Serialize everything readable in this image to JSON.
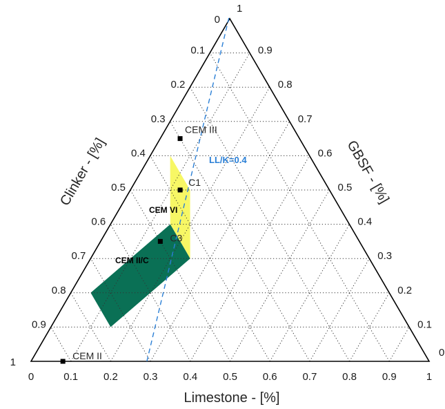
{
  "chart_data": {
    "type": "ternary",
    "axes": {
      "bottom": {
        "label": "Limestone - [%]",
        "ticks": [
          "0",
          "0.1",
          "0.2",
          "0.3",
          "0.4",
          "0.5",
          "0.6",
          "0.7",
          "0.8",
          "0.9",
          "1"
        ]
      },
      "left": {
        "label": "Clinker - [%]",
        "ticks": [
          "0",
          "0.1",
          "0.2",
          "0.3",
          "0.4",
          "0.5",
          "0.6",
          "0.7",
          "0.8",
          "0.9",
          "1"
        ]
      },
      "right": {
        "label": "GBSF - [%]",
        "ticks": [
          "0",
          "0.1",
          "0.2",
          "0.3",
          "0.4",
          "0.5",
          "0.6",
          "0.7",
          "0.8",
          "0.9",
          "1"
        ]
      }
    },
    "grid": true,
    "grid_step": 0.1,
    "regions": [
      {
        "label": "CEM VI",
        "color": "#f7f765",
        "vertices": [
          {
            "limestone": 0.05,
            "gbsf": 0.6
          },
          {
            "limestone": 0.15,
            "gbsf": 0.5
          },
          {
            "limestone": 0.25,
            "gbsf": 0.3
          },
          {
            "limestone": 0.15,
            "gbsf": 0.4
          }
        ]
      },
      {
        "label": "CEM II/C",
        "color": "#0a7055",
        "vertices": [
          {
            "limestone": 0.15,
            "gbsf": 0.4
          },
          {
            "limestone": 0.25,
            "gbsf": 0.3
          },
          {
            "limestone": 0.15,
            "gbsf": 0.1
          },
          {
            "limestone": 0.05,
            "gbsf": 0.2
          }
        ]
      }
    ],
    "points": [
      {
        "label": "CEM III",
        "limestone": 0.05,
        "gbsf": 0.65
      },
      {
        "label": "C1",
        "limestone": 0.125,
        "gbsf": 0.5
      },
      {
        "label": "C3",
        "limestone": 0.15,
        "gbsf": 0.35
      },
      {
        "label": "CEM II",
        "limestone": 0.08,
        "gbsf": 0.0
      }
    ],
    "reference_line": {
      "label": "LL/K=0.4",
      "ratio_limestone_to_clinker": 0.4,
      "color": "#2a7fd6"
    }
  }
}
